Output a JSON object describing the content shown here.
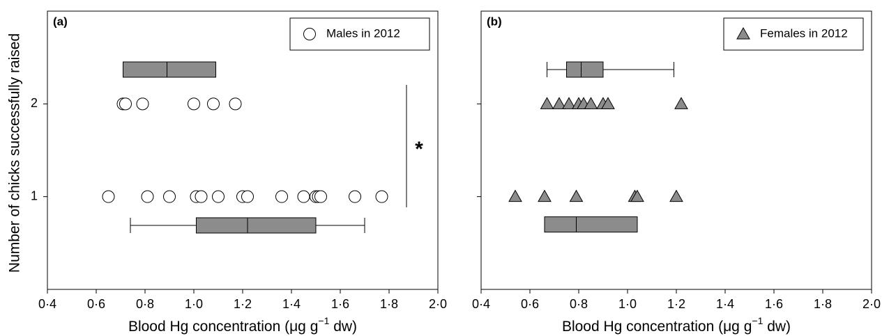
{
  "chart_data": [
    {
      "type": "scatter",
      "panel_label": "(a)",
      "xlabel": "Blood Hg concentration (μg g",
      "xlabel_sup": "−1",
      "xlabel_end": " dw)",
      "ylabel": "Number of chicks successfully raised",
      "series": [
        {
          "name": "Males in 2012",
          "marker": "circle",
          "color": "#ffffff",
          "x": [
            0.71,
            0.72,
            0.79,
            1.0,
            1.08,
            1.17,
            0.65,
            0.81,
            0.9,
            1.01,
            1.03,
            1.1,
            1.2,
            1.22,
            1.36,
            1.45,
            1.5,
            1.51,
            1.52,
            1.66,
            1.77
          ],
          "values": [
            2,
            2,
            2,
            2,
            2,
            2,
            1,
            1,
            1,
            1,
            1,
            1,
            1,
            1,
            1,
            1,
            1,
            1,
            1,
            1,
            1
          ]
        }
      ],
      "boxes": [
        {
          "position": 2.37,
          "q1": 0.71,
          "median": 0.89,
          "q3": 1.09
        },
        {
          "position": 0.69,
          "whisker_low": 0.74,
          "q1": 1.01,
          "median": 1.22,
          "q3": 1.5,
          "whisker_high": 1.7
        }
      ],
      "box_color": "#8c8c8c",
      "annotation": "*",
      "xlim": [
        0.4,
        2.0
      ],
      "xticks": [
        {
          "value": 0.4,
          "label": "0·4"
        },
        {
          "value": 0.6,
          "label": "0·6"
        },
        {
          "value": 0.8,
          "label": "0·8"
        },
        {
          "value": 1.0,
          "label": "1·0"
        },
        {
          "value": 1.2,
          "label": "1·2"
        },
        {
          "value": 1.4,
          "label": "1·4"
        },
        {
          "value": 1.6,
          "label": "1·6"
        },
        {
          "value": 1.8,
          "label": "1·8"
        },
        {
          "value": 2.0,
          "label": "2·0"
        }
      ],
      "ylim": [
        0,
        3
      ],
      "yticks": [
        1,
        2
      ],
      "ytick_labels": true,
      "legend": "upper right"
    },
    {
      "type": "scatter",
      "panel_label": "(b)",
      "xlabel": "Blood Hg concentration (μg g",
      "xlabel_sup": "−1",
      "xlabel_end": " dw)",
      "series": [
        {
          "name": "Females in 2012",
          "marker": "triangle",
          "color": "#8c8c8c",
          "x": [
            0.67,
            0.72,
            0.76,
            0.8,
            0.82,
            0.85,
            0.9,
            0.92,
            1.22,
            0.54,
            0.66,
            0.79,
            1.03,
            1.04,
            1.2
          ],
          "values": [
            2,
            2,
            2,
            2,
            2,
            2,
            2,
            2,
            2,
            1,
            1,
            1,
            1,
            1,
            1
          ]
        }
      ],
      "boxes": [
        {
          "position": 2.37,
          "whisker_low": 0.67,
          "q1": 0.75,
          "median": 0.81,
          "q3": 0.9,
          "whisker_high": 1.19
        },
        {
          "position": 0.7,
          "q1": 0.66,
          "median": 0.79,
          "q3": 1.04
        }
      ],
      "box_color": "#8c8c8c",
      "xlim": [
        0.4,
        2.0
      ],
      "xticks": [
        {
          "value": 0.4,
          "label": "0·4"
        },
        {
          "value": 0.6,
          "label": "0·6"
        },
        {
          "value": 0.8,
          "label": "0·8"
        },
        {
          "value": 1.0,
          "label": "1·0"
        },
        {
          "value": 1.2,
          "label": "1·2"
        },
        {
          "value": 1.4,
          "label": "1·4"
        },
        {
          "value": 1.6,
          "label": "1·6"
        },
        {
          "value": 1.8,
          "label": "1·8"
        },
        {
          "value": 2.0,
          "label": "2·0"
        }
      ],
      "ylim": [
        0,
        3
      ],
      "yticks": [
        1,
        2
      ],
      "ytick_labels": false,
      "legend": "upper right"
    }
  ]
}
